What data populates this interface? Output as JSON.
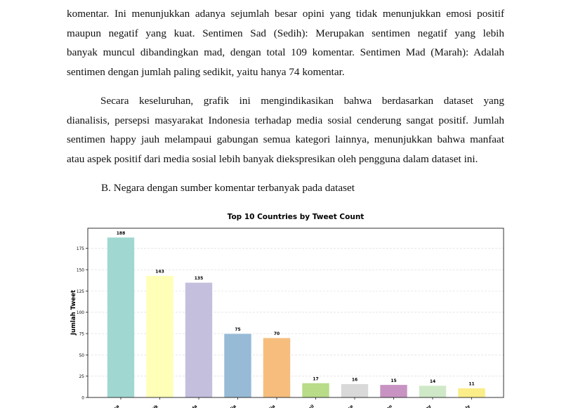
{
  "paragraph1": {
    "lines": [
      "komentar. Ini menunjukkan adanya sejumlah besar opini yang tidak menunjukkan emosi positif",
      "maupun negatif yang kuat. Sentimen Sad (Sedih): Merupakan sentimen negatif yang lebih",
      "banyak muncul dibandingkan mad, dengan total 109 komentar. Sentimen Mad (Marah): Adalah",
      "sentimen dengan jumlah paling sedikit, yaitu hanya 74 komentar."
    ]
  },
  "paragraph2": {
    "lines": [
      "Secara keseluruhan, grafik ini mengindikasikan bahwa berdasarkan dataset yang",
      "dianalisis, persepsi masyarakat Indonesia terhadap media sosial cenderung sangat positif. Jumlah",
      "sentimen happy jauh melampaui gabungan semua kategori lainnya, menunjukkan bahwa manfaat",
      "atau aspek positif dari media sosial lebih banyak diekspresikan oleh pengguna dalam dataset ini."
    ]
  },
  "section_heading": "B. Negara dengan sumber komentar terbanyak pada dataset",
  "chart_data": {
    "type": "bar",
    "title": "Top 10 Countries by Tweet Count",
    "xlabel": "",
    "ylabel": "Jumlah Tweet",
    "ylim": [
      0,
      200
    ],
    "yticks": [
      0,
      25,
      50,
      75,
      100,
      125,
      150,
      175
    ],
    "categories": [
      "Usa",
      "Uk",
      "nda",
      "alia",
      "dia",
      "azil",
      "nce",
      "pan",
      "any",
      "aly"
    ],
    "values": [
      188,
      143,
      135,
      75,
      70,
      17,
      16,
      15,
      14,
      11
    ],
    "colors": [
      "#a0d8d1",
      "#ffffb7",
      "#c5bfde",
      "#97bad6",
      "#f6bd7d",
      "#b8dc88",
      "#d9d9d9",
      "#c893c3",
      "#cfe9c8",
      "#fbed88"
    ],
    "grid": true,
    "data_labels": true
  }
}
